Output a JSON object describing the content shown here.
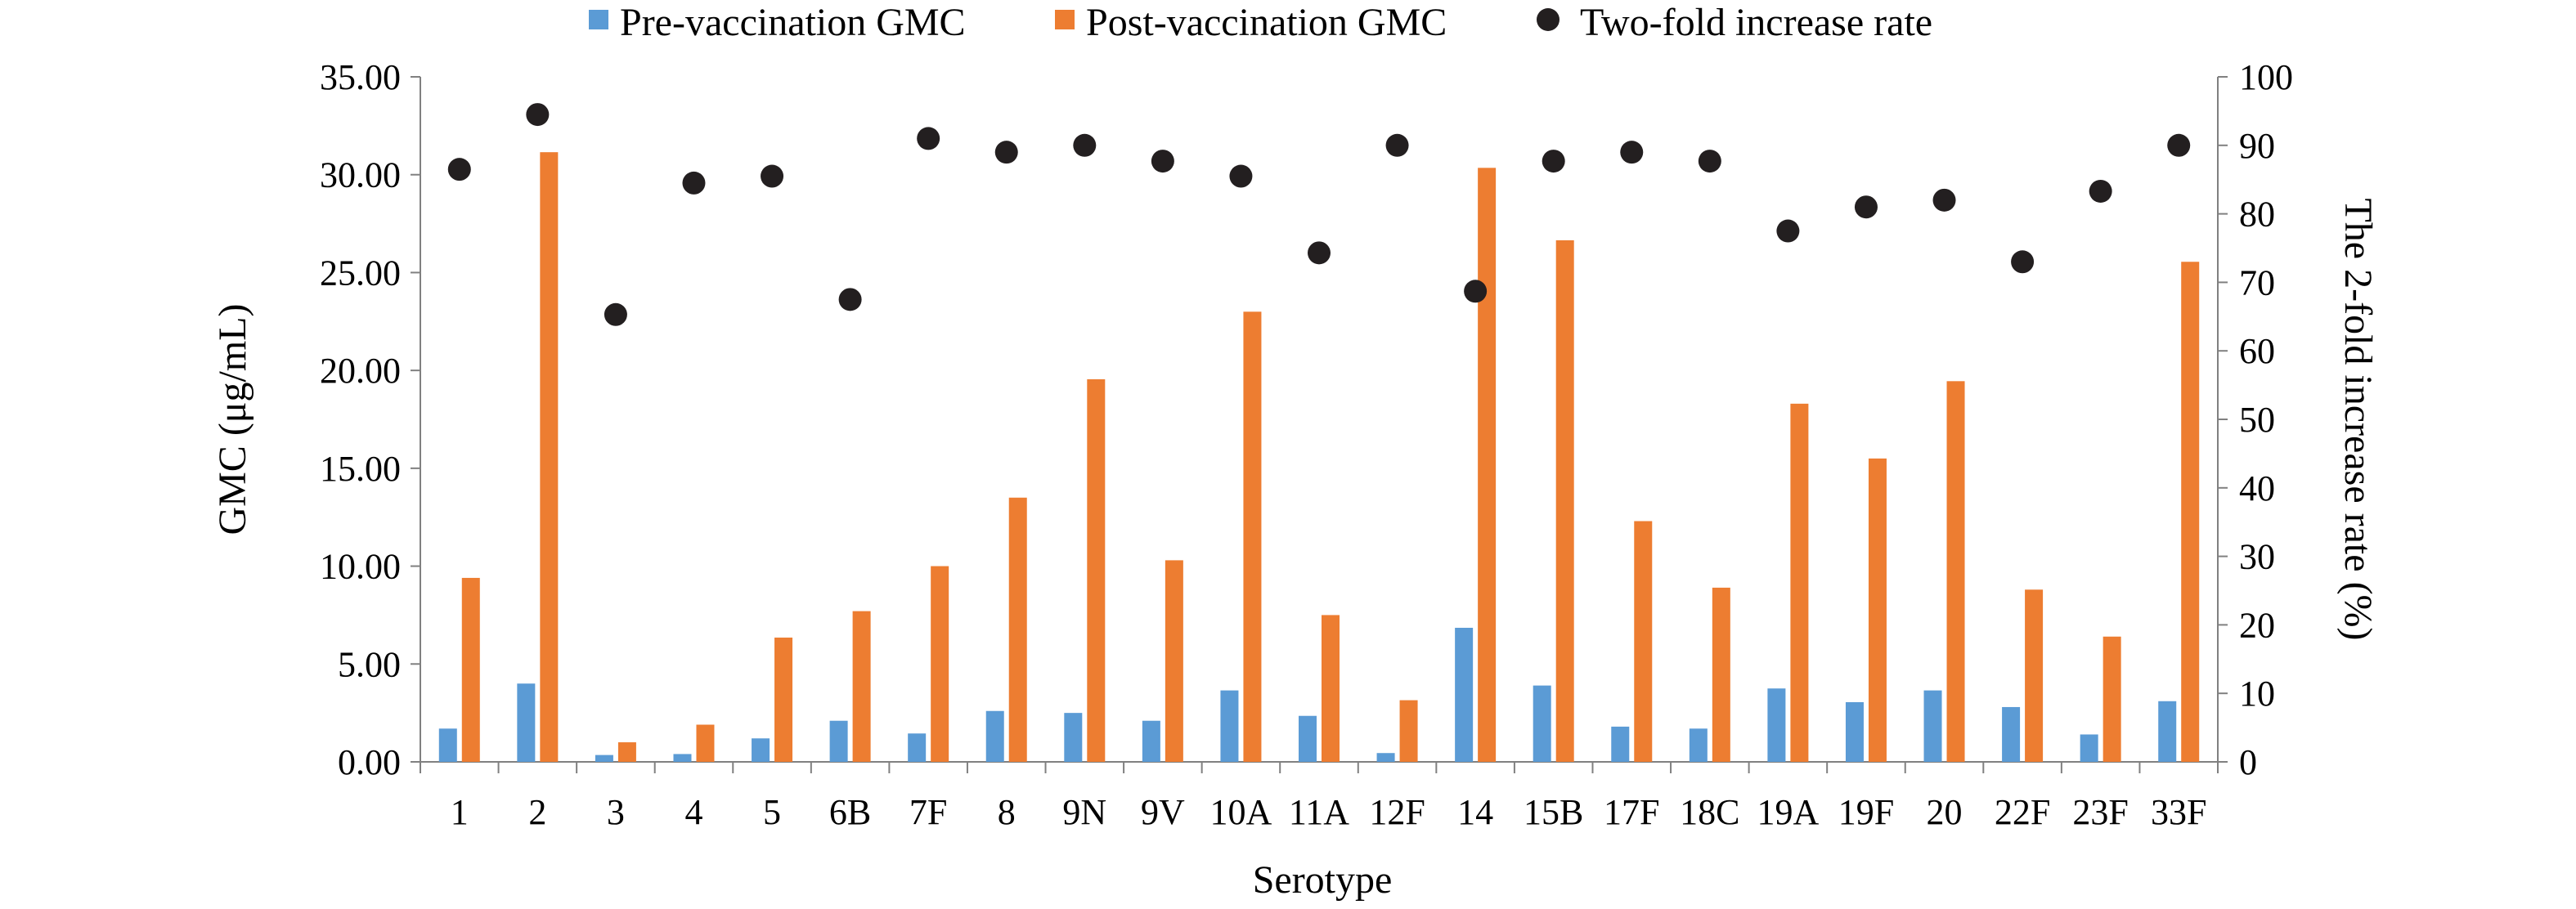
{
  "chart_data": {
    "type": "bar",
    "title": "",
    "xlabel": "Serotype",
    "ylabel": "GMC (μg/mL)",
    "y2label": "The 2-fold increase rate (%)",
    "ylim": [
      0,
      35
    ],
    "y2lim": [
      0,
      100
    ],
    "yticks": [
      "0.00",
      "5.00",
      "10.00",
      "15.00",
      "20.00",
      "25.00",
      "30.00",
      "35.00"
    ],
    "y2ticks": [
      "0",
      "10",
      "20",
      "30",
      "40",
      "50",
      "60",
      "70",
      "80",
      "90",
      "100"
    ],
    "grid": false,
    "legend_position": "top",
    "categories": [
      "1",
      "2",
      "3",
      "4",
      "5",
      "6B",
      "7F",
      "8",
      "9N",
      "9V",
      "10A",
      "11A",
      "12F",
      "14",
      "15B",
      "17F",
      "18C",
      "19A",
      "19F",
      "20",
      "22F",
      "23F",
      "33F"
    ],
    "series": [
      {
        "name": "Pre-vaccination GMC",
        "type": "bar",
        "axis": "left",
        "color": "#5b9bd5",
        "values": [
          1.7,
          4.0,
          0.35,
          0.4,
          1.2,
          2.1,
          1.45,
          2.6,
          2.5,
          2.1,
          3.65,
          2.35,
          0.45,
          6.85,
          3.9,
          1.8,
          1.7,
          3.75,
          3.05,
          3.65,
          2.8,
          1.4,
          3.1
        ]
      },
      {
        "name": "Post-vaccination GMC",
        "type": "bar",
        "axis": "left",
        "color": "#ed7d31",
        "values": [
          9.4,
          31.15,
          1.0,
          1.9,
          6.35,
          7.7,
          10.0,
          13.5,
          19.55,
          10.3,
          23.0,
          7.5,
          3.15,
          30.35,
          26.65,
          12.3,
          8.9,
          18.3,
          15.5,
          19.45,
          8.8,
          6.4,
          25.55
        ]
      },
      {
        "name": "Two-fold increase rate",
        "type": "scatter",
        "axis": "right",
        "color": "#231f20",
        "values": [
          86.5,
          94.5,
          65.3,
          84.5,
          85.5,
          67.5,
          91.0,
          89.0,
          90.0,
          87.7,
          85.5,
          74.3,
          90.0,
          68.7,
          87.7,
          89.0,
          87.7,
          77.5,
          81.0,
          82.0,
          73.0,
          83.3,
          90.0
        ]
      }
    ]
  }
}
